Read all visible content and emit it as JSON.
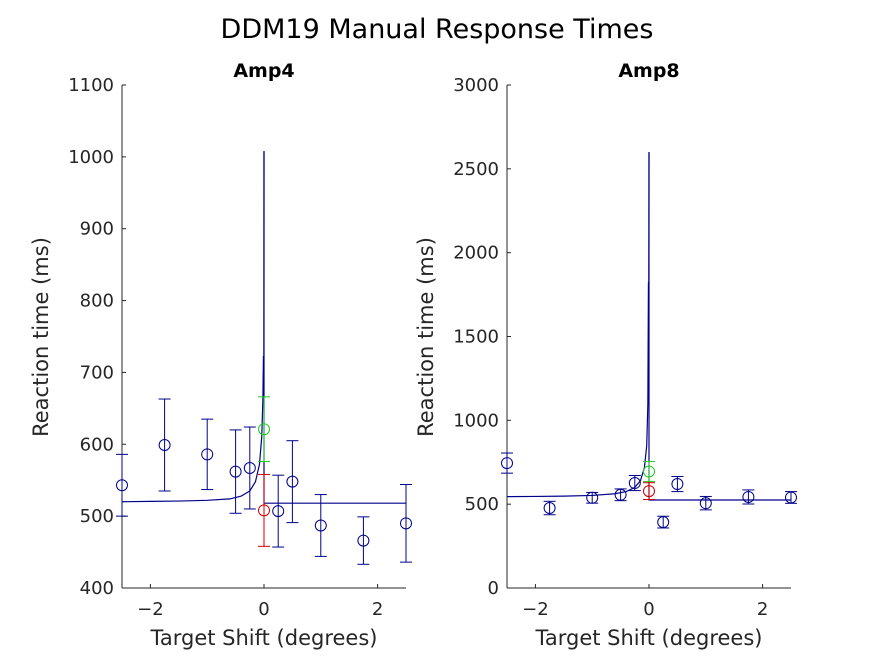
{
  "figure": {
    "title": "DDM19 Manual Response Times"
  },
  "chart_data": [
    {
      "type": "scatter",
      "title": "Amp4",
      "xlabel": "Target Shift (degrees)",
      "ylabel": "Reaction time (ms)",
      "xlim": [
        -2.5,
        2.5
      ],
      "ylim": [
        400,
        1100
      ],
      "xticks": [
        -2,
        0,
        2
      ],
      "yticks": [
        400,
        500,
        600,
        700,
        800,
        900,
        1000,
        1100
      ],
      "grid": false,
      "colors": {
        "data": "#00008B",
        "green": "#22CC22",
        "red": "#CC0000",
        "axis": "#262626"
      },
      "series": [
        {
          "marker": "circle",
          "color": "#00008B",
          "points": [
            {
              "x": -2.5,
              "y": 543,
              "err": 43
            },
            {
              "x": -1.75,
              "y": 599,
              "err": 64
            },
            {
              "x": -1.0,
              "y": 586,
              "err": 49
            },
            {
              "x": -0.5,
              "y": 562,
              "err": 58
            },
            {
              "x": -0.25,
              "y": 567,
              "err": 57
            },
            {
              "x": 0.25,
              "y": 507,
              "err": 50
            },
            {
              "x": 0.5,
              "y": 548,
              "err": 57
            },
            {
              "x": 1.0,
              "y": 487,
              "err": 43
            },
            {
              "x": 1.75,
              "y": 466,
              "err": 33
            },
            {
              "x": 2.5,
              "y": 490,
              "err": 54
            }
          ]
        },
        {
          "marker": "circle",
          "color": "#22CC22",
          "points": [
            {
              "x": 0.0,
              "y": 621,
              "err": 45
            }
          ]
        },
        {
          "marker": "circle",
          "color": "#CC0000",
          "points": [
            {
              "x": 0.0,
              "y": 508,
              "err": 50
            }
          ]
        }
      ],
      "fit_line": {
        "color": "#00008B",
        "left": [
          [
            -2.5,
            520
          ],
          [
            -2.0,
            520.5
          ],
          [
            -1.5,
            521
          ],
          [
            -1.0,
            522
          ],
          [
            -0.6,
            524
          ],
          [
            -0.4,
            528
          ],
          [
            -0.25,
            535
          ],
          [
            -0.15,
            548
          ],
          [
            -0.08,
            572
          ],
          [
            -0.04,
            610
          ],
          [
            -0.02,
            660
          ],
          [
            -0.01,
            722
          ],
          [
            -0.002,
            722
          ],
          [
            0.0,
            1008
          ]
        ],
        "right": [
          [
            0.0,
            1008
          ],
          [
            0.0,
            518
          ],
          [
            2.5,
            518
          ]
        ]
      }
    },
    {
      "type": "scatter",
      "title": "Amp8",
      "xlabel": "Target Shift (degrees)",
      "ylabel": "Reaction time (ms)",
      "xlim": [
        -2.5,
        2.5
      ],
      "ylim": [
        0,
        3000
      ],
      "xticks": [
        -2,
        0,
        2
      ],
      "yticks": [
        0,
        500,
        1000,
        1500,
        2000,
        2500,
        3000
      ],
      "grid": false,
      "colors": {
        "data": "#00008B",
        "green": "#22CC22",
        "red": "#CC0000",
        "axis": "#262626"
      },
      "series": [
        {
          "marker": "circle",
          "color": "#00008B",
          "points": [
            {
              "x": -2.5,
              "y": 745,
              "err": 60
            },
            {
              "x": -1.75,
              "y": 477,
              "err": 40
            },
            {
              "x": -1.0,
              "y": 538,
              "err": 32
            },
            {
              "x": -0.5,
              "y": 556,
              "err": 35
            },
            {
              "x": -0.25,
              "y": 626,
              "err": 45
            },
            {
              "x": 0.25,
              "y": 393,
              "err": 35
            },
            {
              "x": 0.5,
              "y": 620,
              "err": 45
            },
            {
              "x": 1.0,
              "y": 506,
              "err": 40
            },
            {
              "x": 1.75,
              "y": 543,
              "err": 42
            },
            {
              "x": 2.5,
              "y": 540,
              "err": 35
            }
          ]
        },
        {
          "marker": "circle",
          "color": "#22CC22",
          "points": [
            {
              "x": 0.0,
              "y": 695,
              "err": 60
            }
          ]
        },
        {
          "marker": "circle",
          "color": "#CC0000",
          "points": [
            {
              "x": 0.0,
              "y": 578,
              "err": 50
            }
          ]
        }
      ],
      "fit_line": {
        "color": "#00008B",
        "left": [
          [
            -2.5,
            545
          ],
          [
            -2.0,
            546
          ],
          [
            -1.5,
            548
          ],
          [
            -1.0,
            552
          ],
          [
            -0.6,
            562
          ],
          [
            -0.4,
            575
          ],
          [
            -0.25,
            600
          ],
          [
            -0.15,
            640
          ],
          [
            -0.08,
            720
          ],
          [
            -0.04,
            850
          ],
          [
            -0.02,
            1100
          ],
          [
            -0.01,
            1820
          ],
          [
            -0.003,
            1820
          ],
          [
            0.0,
            2600
          ]
        ],
        "right": [
          [
            0.0,
            2600
          ],
          [
            0.0,
            525
          ],
          [
            2.5,
            525
          ]
        ]
      }
    }
  ]
}
